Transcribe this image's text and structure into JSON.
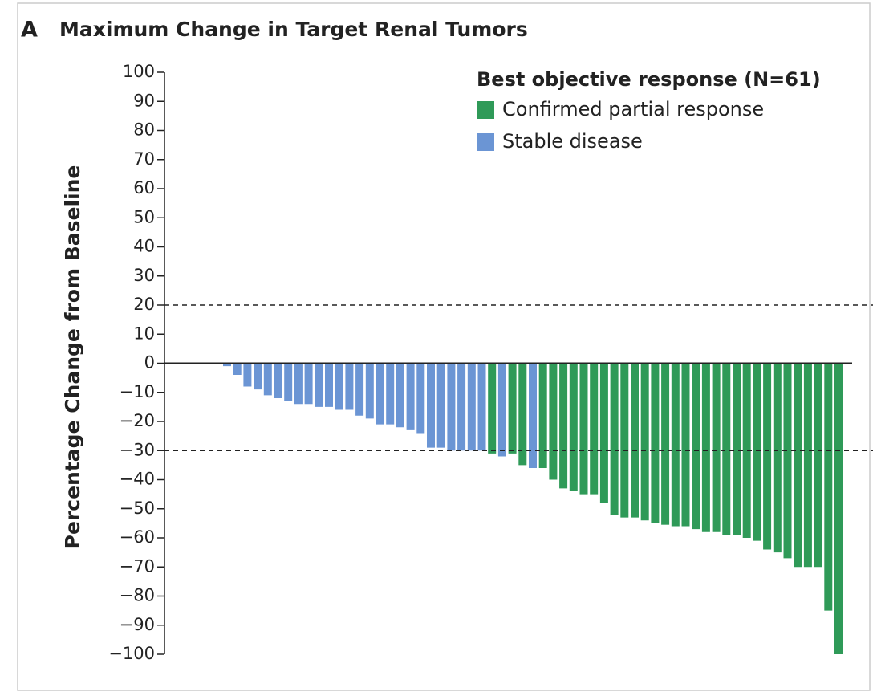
{
  "chart_data": {
    "type": "bar",
    "panel_label": "A",
    "title": "Maximum Change in Target Renal Tumors",
    "y_label": "Percentage Change from Baseline",
    "legend_title": "Best objective response (N=61)",
    "series": [
      {
        "name": "Confirmed partial response",
        "color": "#2f9a58",
        "values": [
          null,
          null,
          null,
          null,
          null,
          null,
          null,
          null,
          null,
          null,
          null,
          null,
          null,
          null,
          null,
          null,
          null,
          null,
          null,
          null,
          null,
          null,
          null,
          null,
          null,
          null,
          -31,
          null,
          -31,
          -35,
          null,
          -36,
          -40,
          -43,
          -44,
          -45,
          -45,
          -48,
          -52,
          -53,
          -53,
          -54,
          -55,
          -55.5,
          -56,
          -56,
          -57,
          -58,
          -58,
          -59,
          -59,
          -60,
          -61,
          -64,
          -65,
          -67,
          -70,
          -70,
          -70,
          -85,
          -100
        ]
      },
      {
        "name": "Stable disease",
        "color": "#6b95d4",
        "values": [
          -1,
          -4,
          -8,
          -9,
          -11,
          -12,
          -13,
          -14,
          -14,
          -15,
          -15,
          -16,
          -16,
          -18,
          -19,
          -21,
          -21,
          -22,
          -23,
          -24,
          -29,
          -29,
          -30,
          -30,
          -30,
          -30,
          null,
          -32,
          null,
          null,
          -36,
          null,
          null,
          null,
          null,
          null,
          null,
          null,
          null,
          null,
          null,
          null,
          null,
          null,
          null,
          null,
          null,
          null,
          null,
          null,
          null,
          null,
          null,
          null,
          null,
          null,
          null,
          null,
          null,
          null,
          null
        ]
      }
    ],
    "reference_lines": [
      20,
      -30
    ],
    "ylim": [
      -100,
      100
    ],
    "yticks": [
      100,
      90,
      80,
      70,
      60,
      50,
      40,
      30,
      20,
      10,
      0,
      {
        "value": -10,
        "label": "−10"
      },
      {
        "value": -20,
        "label": "−20"
      },
      {
        "value": -30,
        "label": "−30"
      },
      {
        "value": -40,
        "label": "−40"
      },
      {
        "value": -50,
        "label": "−50"
      },
      {
        "value": -60,
        "label": "−60"
      },
      {
        "value": -70,
        "label": "−70"
      },
      {
        "value": -80,
        "label": "−80"
      },
      {
        "value": -90,
        "label": "−90"
      },
      {
        "value": -100,
        "label": "−100"
      }
    ]
  }
}
